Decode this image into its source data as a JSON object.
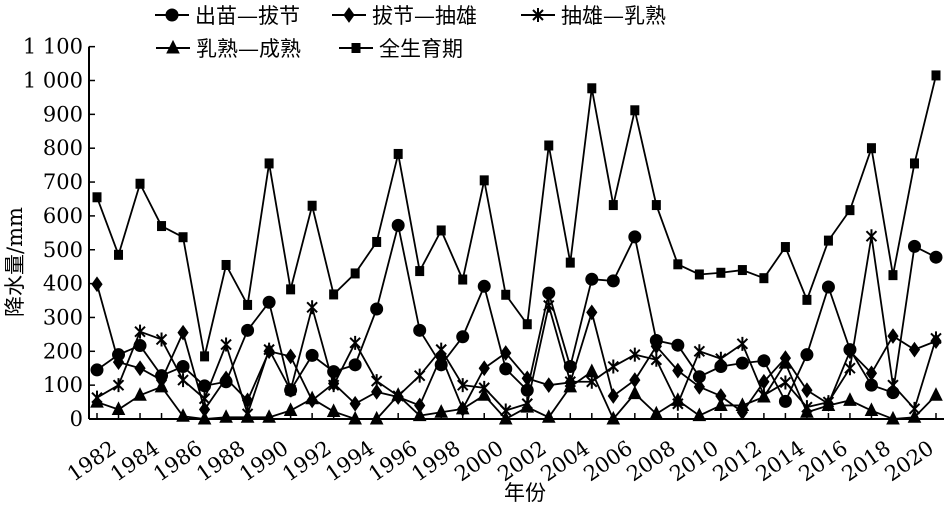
{
  "chart_data": {
    "type": "line",
    "title": "",
    "xlabel": "年份",
    "ylabel": "降水量/mm",
    "ylim": [
      0,
      1100
    ],
    "yticks": [
      "0",
      "100",
      "200",
      "300",
      "400",
      "500",
      "600",
      "700",
      "800",
      "900",
      "1 000",
      "1 100"
    ],
    "ytick_values": [
      0,
      100,
      200,
      300,
      400,
      500,
      600,
      700,
      800,
      900,
      1000,
      1100
    ],
    "xticks": [
      "1982",
      "1984",
      "1986",
      "1988",
      "1990",
      "1992",
      "1994",
      "1996",
      "1998",
      "2000",
      "2002",
      "2004",
      "2006",
      "2008",
      "2010",
      "2012",
      "2014",
      "2016",
      "2018",
      "2020"
    ],
    "x": [
      1982,
      1983,
      1984,
      1985,
      1986,
      1987,
      1988,
      1989,
      1990,
      1991,
      1992,
      1993,
      1994,
      1995,
      1996,
      1997,
      1998,
      1999,
      2000,
      2001,
      2002,
      2003,
      2004,
      2005,
      2006,
      2007,
      2008,
      2009,
      2010,
      2011,
      2012,
      2013,
      2014,
      2015,
      2016,
      2017,
      2018,
      2019,
      2020,
      2021
    ],
    "legend_position": "top",
    "grid": false,
    "series": [
      {
        "name": "出苗—拔节",
        "marker": "circle",
        "values": [
          145,
          190,
          217,
          128,
          155,
          98,
          110,
          262,
          345,
          85,
          188,
          140,
          160,
          325,
          572,
          262,
          160,
          243,
          392,
          148,
          85,
          372,
          155,
          413,
          408,
          538,
          232,
          218,
          125,
          155,
          165,
          172,
          52,
          190,
          390,
          205,
          100,
          78,
          510,
          478
        ]
      },
      {
        "name": "拔节—抽雄",
        "marker": "diamond",
        "values": [
          398,
          168,
          150,
          115,
          255,
          28,
          120,
          55,
          200,
          185,
          55,
          105,
          45,
          80,
          65,
          40,
          185,
          30,
          150,
          195,
          120,
          100,
          108,
          315,
          68,
          115,
          215,
          143,
          95,
          68,
          20,
          110,
          180,
          85,
          45,
          200,
          135,
          245,
          205,
          230
        ]
      },
      {
        "name": "抽雄—乳熟",
        "marker": "star",
        "values": [
          63,
          100,
          258,
          235,
          115,
          60,
          220,
          15,
          205,
          85,
          330,
          100,
          225,
          112,
          68,
          128,
          205,
          100,
          92,
          25,
          45,
          335,
          110,
          110,
          155,
          190,
          175,
          45,
          200,
          178,
          222,
          70,
          108,
          35,
          50,
          150,
          540,
          100,
          30,
          238
        ]
      },
      {
        "name": "乳熟—成熟",
        "marker": "triangle",
        "values": [
          50,
          28,
          70,
          95,
          8,
          0,
          5,
          5,
          5,
          25,
          60,
          22,
          0,
          0,
          70,
          10,
          20,
          30,
          70,
          0,
          35,
          5,
          95,
          140,
          0,
          75,
          15,
          55,
          10,
          40,
          40,
          65,
          165,
          20,
          40,
          55,
          25,
          0,
          5,
          70
        ]
      },
      {
        "name": "全生育期",
        "marker": "square",
        "values": [
          655,
          485,
          695,
          570,
          537,
          185,
          455,
          337,
          755,
          383,
          630,
          368,
          430,
          523,
          783,
          437,
          557,
          412,
          705,
          367,
          280,
          808,
          462,
          977,
          632,
          912,
          632,
          457,
          427,
          432,
          440,
          416,
          508,
          352,
          527,
          617,
          800,
          425,
          755,
          1015
        ]
      }
    ]
  }
}
